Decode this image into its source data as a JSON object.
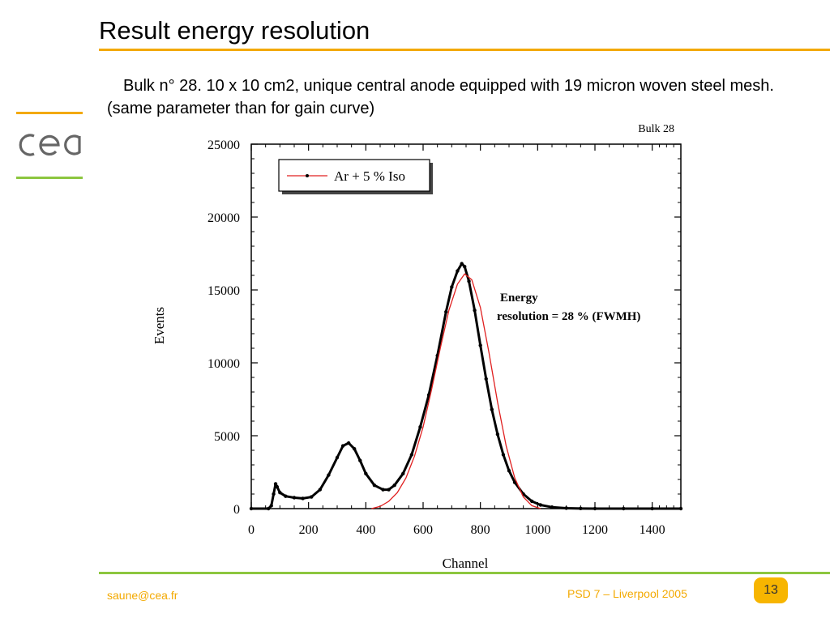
{
  "slide": {
    "title": "Result energy resolution",
    "description": "Bulk n° 28. 10 x 10 cm2, unique central anode equipped with 19 micron woven steel mesh. (same parameter than for gain curve)",
    "footer_left": "saune@cea.fr",
    "footer_right": "PSD 7 – Liverpool 2005",
    "page_number": "13",
    "accent_color": "#f3a900",
    "secondary_color": "#8cc63f"
  },
  "chart_data": {
    "type": "scatter",
    "title": "Bulk 28",
    "xlabel": "Channel",
    "ylabel": "Events",
    "xlim": [
      0,
      1500
    ],
    "ylim": [
      0,
      25000
    ],
    "xticks": [
      0,
      200,
      400,
      600,
      800,
      1000,
      1200,
      1400
    ],
    "yticks": [
      0,
      5000,
      10000,
      15000,
      20000,
      25000
    ],
    "legend_position": "top-left",
    "annotation": [
      "Energy",
      "resolution = 28 % (FWMH)"
    ],
    "series": [
      {
        "name": "Ar + 5 % Iso",
        "kind": "points",
        "color": "#000000",
        "x": [
          0,
          60,
          70,
          78,
          85,
          90,
          100,
          120,
          150,
          180,
          210,
          240,
          270,
          300,
          320,
          340,
          360,
          380,
          400,
          430,
          460,
          480,
          500,
          530,
          560,
          590,
          620,
          650,
          680,
          700,
          720,
          735,
          745,
          760,
          780,
          800,
          820,
          840,
          860,
          880,
          900,
          920,
          950,
          980,
          1010,
          1050,
          1100,
          1150,
          1200,
          1300,
          1400,
          1500
        ],
        "y": [
          0,
          0,
          200,
          1000,
          1700,
          1500,
          1100,
          850,
          750,
          700,
          800,
          1300,
          2300,
          3500,
          4300,
          4500,
          4100,
          3300,
          2400,
          1600,
          1300,
          1300,
          1600,
          2400,
          3700,
          5600,
          7800,
          10500,
          13500,
          15200,
          16300,
          16800,
          16600,
          15600,
          13600,
          11200,
          8900,
          6800,
          5100,
          3700,
          2600,
          1800,
          1000,
          500,
          250,
          100,
          30,
          10,
          0,
          0,
          0,
          0
        ]
      },
      {
        "name": "",
        "kind": "line",
        "color": "#e02020",
        "x": [
          420,
          450,
          480,
          510,
          540,
          570,
          600,
          630,
          660,
          690,
          720,
          745,
          770,
          800,
          830,
          860,
          890,
          920,
          950,
          980,
          1010
        ],
        "y": [
          0,
          150,
          500,
          1100,
          2100,
          3600,
          5600,
          8200,
          11000,
          13600,
          15400,
          16100,
          15700,
          13800,
          10700,
          7300,
          4300,
          2100,
          800,
          200,
          0
        ]
      }
    ]
  }
}
